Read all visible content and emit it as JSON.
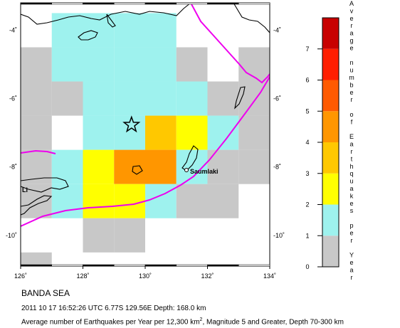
{
  "map": {
    "lon_ticks": [
      "126˚",
      "128˚",
      "130˚",
      "132˚",
      "134˚"
    ],
    "lat_ticks": [
      "-4˚",
      "-6˚",
      "-8˚",
      "-10˚"
    ],
    "place_labels": {
      "saumlaki": "Saumlaki",
      "li": "Li"
    },
    "epicenter": {
      "lon": 129.56,
      "lat": -6.77
    },
    "grid_cells": [
      {
        "lon": 127,
        "lat": -3.5,
        "level": "0-1"
      },
      {
        "lon": 128,
        "lat": -3.5,
        "level": "0-1"
      },
      {
        "lon": 129,
        "lat": -3.5,
        "level": "0-1"
      },
      {
        "lon": 130,
        "lat": -3.5,
        "level": "0-1"
      },
      {
        "lon": 126,
        "lat": -4.5,
        "level": "0"
      },
      {
        "lon": 127,
        "lat": -4.5,
        "level": "0-1"
      },
      {
        "lon": 128,
        "lat": -4.5,
        "level": "0-1"
      },
      {
        "lon": 129,
        "lat": -4.5,
        "level": "0-1"
      },
      {
        "lon": 130,
        "lat": -4.5,
        "level": "0-1"
      },
      {
        "lon": 131,
        "lat": -4.5,
        "level": "0"
      },
      {
        "lon": 133,
        "lat": -4.5,
        "level": "0"
      },
      {
        "lon": 126,
        "lat": -5.5,
        "level": "0"
      },
      {
        "lon": 127,
        "lat": -5.5,
        "level": "0"
      },
      {
        "lon": 128,
        "lat": -5.5,
        "level": "0-1"
      },
      {
        "lon": 129,
        "lat": -5.5,
        "level": "0-1"
      },
      {
        "lon": 130,
        "lat": -5.5,
        "level": "0-1"
      },
      {
        "lon": 131,
        "lat": -5.5,
        "level": "0-1"
      },
      {
        "lon": 132,
        "lat": -5.5,
        "level": "0"
      },
      {
        "lon": 133,
        "lat": -5.5,
        "level": "0"
      },
      {
        "lon": 126,
        "lat": -6.5,
        "level": "0"
      },
      {
        "lon": 128,
        "lat": -6.5,
        "level": "0-1"
      },
      {
        "lon": 129,
        "lat": -6.5,
        "level": "0-1"
      },
      {
        "lon": 130,
        "lat": -6.5,
        "level": "2-3"
      },
      {
        "lon": 131,
        "lat": -6.5,
        "level": "1-2"
      },
      {
        "lon": 132,
        "lat": -6.5,
        "level": "0-1"
      },
      {
        "lon": 133,
        "lat": -6.5,
        "level": "0"
      },
      {
        "lon": 126,
        "lat": -7.5,
        "level": "0"
      },
      {
        "lon": 127,
        "lat": -7.5,
        "level": "0-1"
      },
      {
        "lon": 128,
        "lat": -7.5,
        "level": "1-2"
      },
      {
        "lon": 129,
        "lat": -7.5,
        "level": "3-4"
      },
      {
        "lon": 130,
        "lat": -7.5,
        "level": "3-4"
      },
      {
        "lon": 131,
        "lat": -7.5,
        "level": "0-1"
      },
      {
        "lon": 132,
        "lat": -7.5,
        "level": "0"
      },
      {
        "lon": 133,
        "lat": -7.5,
        "level": "0"
      },
      {
        "lon": 126,
        "lat": -8.5,
        "level": "0"
      },
      {
        "lon": 127,
        "lat": -8.5,
        "level": "0-1"
      },
      {
        "lon": 128,
        "lat": -8.5,
        "level": "1-2"
      },
      {
        "lon": 129,
        "lat": -8.5,
        "level": "1-2"
      },
      {
        "lon": 130,
        "lat": -8.5,
        "level": "0-1"
      },
      {
        "lon": 131,
        "lat": -8.5,
        "level": "0"
      },
      {
        "lon": 132,
        "lat": -8.5,
        "level": "0"
      },
      {
        "lon": 128,
        "lat": -9.5,
        "level": "0"
      },
      {
        "lon": 129,
        "lat": -9.5,
        "level": "0"
      },
      {
        "lon": 126,
        "lat": -10.5,
        "level": "0"
      }
    ]
  },
  "legend": {
    "title": "Average number of Earthquakes per Year",
    "ticks": [
      "0",
      "1",
      "2",
      "3",
      "4",
      "5",
      "6",
      "7"
    ],
    "colors": [
      "#c8c8c8",
      "#9ef2ee",
      "#ffff00",
      "#ffc800",
      "#ff9600",
      "#ff5a00",
      "#ff1e00",
      "#c80000"
    ]
  },
  "caption": {
    "region": "BANDA SEA",
    "event": "2011 10 17 16:52:26 UTC 6.77S 129.56E Depth: 168.0 km",
    "description_pre": "Average number of Earthquakes per Year per 12,300 km",
    "description_sup": "2",
    "description_post": ", Magnitude 5 and Greater, Depth 70-300 km"
  }
}
